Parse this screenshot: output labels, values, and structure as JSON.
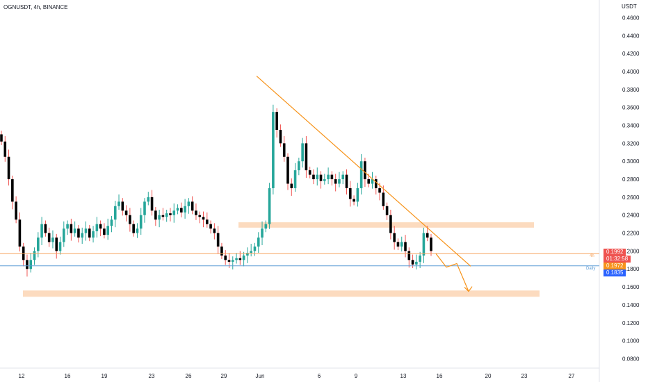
{
  "header": {
    "title": "OGNUSDT, 4h, BINANCE",
    "currency": "USDT"
  },
  "price_axis": {
    "ticks": [
      "0.4600",
      "0.4400",
      "0.4200",
      "0.4000",
      "0.3800",
      "0.3600",
      "0.3400",
      "0.3200",
      "0.3000",
      "0.2800",
      "0.2600",
      "0.2400",
      "0.2200",
      "0.2000",
      "0.1800",
      "0.1600",
      "0.1400",
      "0.1200",
      "0.1000",
      "0.0800"
    ]
  },
  "time_axis": {
    "labels": [
      "12",
      "16",
      "19",
      "23",
      "26",
      "29",
      "Jun",
      "6",
      "9",
      "13",
      "16",
      "20",
      "23",
      "27"
    ]
  },
  "price_tags": {
    "last_price": "0.1992",
    "countdown": "01:32:58",
    "h4_level": "0.1972",
    "daily_level": "0.1835",
    "h4_label": "4h",
    "daily_label": "Daily"
  },
  "colors": {
    "up": "#26a69a",
    "down": "#ef5350",
    "candle_body_dark": "#000000",
    "trendline": "#f7931a",
    "zone": "#fcd5b4",
    "h4_line": "#f7a35c",
    "daily_line": "#5b9bd5"
  },
  "chart_data": {
    "type": "candlestick",
    "symbol": "OGNUSDT",
    "interval": "4h",
    "exchange": "BINANCE",
    "ylim": [
      0.07,
      0.47
    ],
    "candles_close": [
      0.322,
      0.305,
      0.28,
      0.255,
      0.235,
      0.205,
      0.19,
      0.18,
      0.19,
      0.2,
      0.215,
      0.23,
      0.22,
      0.21,
      0.215,
      0.2,
      0.21,
      0.225,
      0.23,
      0.22,
      0.225,
      0.215,
      0.22,
      0.225,
      0.215,
      0.222,
      0.23,
      0.225,
      0.218,
      0.228,
      0.235,
      0.25,
      0.255,
      0.245,
      0.24,
      0.23,
      0.22,
      0.225,
      0.24,
      0.255,
      0.26,
      0.245,
      0.235,
      0.24,
      0.238,
      0.242,
      0.24,
      0.245,
      0.248,
      0.243,
      0.25,
      0.255,
      0.245,
      0.24,
      0.238,
      0.235,
      0.23,
      0.225,
      0.22,
      0.205,
      0.195,
      0.19,
      0.188,
      0.19,
      0.192,
      0.19,
      0.195,
      0.198,
      0.2,
      0.205,
      0.215,
      0.225,
      0.23,
      0.27,
      0.355,
      0.335,
      0.32,
      0.305,
      0.275,
      0.27,
      0.29,
      0.3,
      0.32,
      0.29,
      0.285,
      0.28,
      0.285,
      0.278,
      0.28,
      0.285,
      0.28,
      0.275,
      0.28,
      0.285,
      0.27,
      0.258,
      0.255,
      0.27,
      0.3,
      0.28,
      0.275,
      0.28,
      0.27,
      0.265,
      0.25,
      0.24,
      0.22,
      0.21,
      0.205,
      0.21,
      0.2,
      0.19,
      0.185,
      0.188,
      0.195,
      0.22,
      0.215,
      0.2
    ],
    "trendline_points": [
      [
        0.395
      ],
      [
        0.183
      ]
    ],
    "resistance_zone": [
      0.226,
      0.232
    ],
    "support_zone": [
      0.149,
      0.156
    ],
    "projection": [
      0.197,
      0.182,
      0.186,
      0.155
    ],
    "h4_level": 0.1972,
    "daily_level": 0.1835,
    "last_price": 0.1992
  }
}
